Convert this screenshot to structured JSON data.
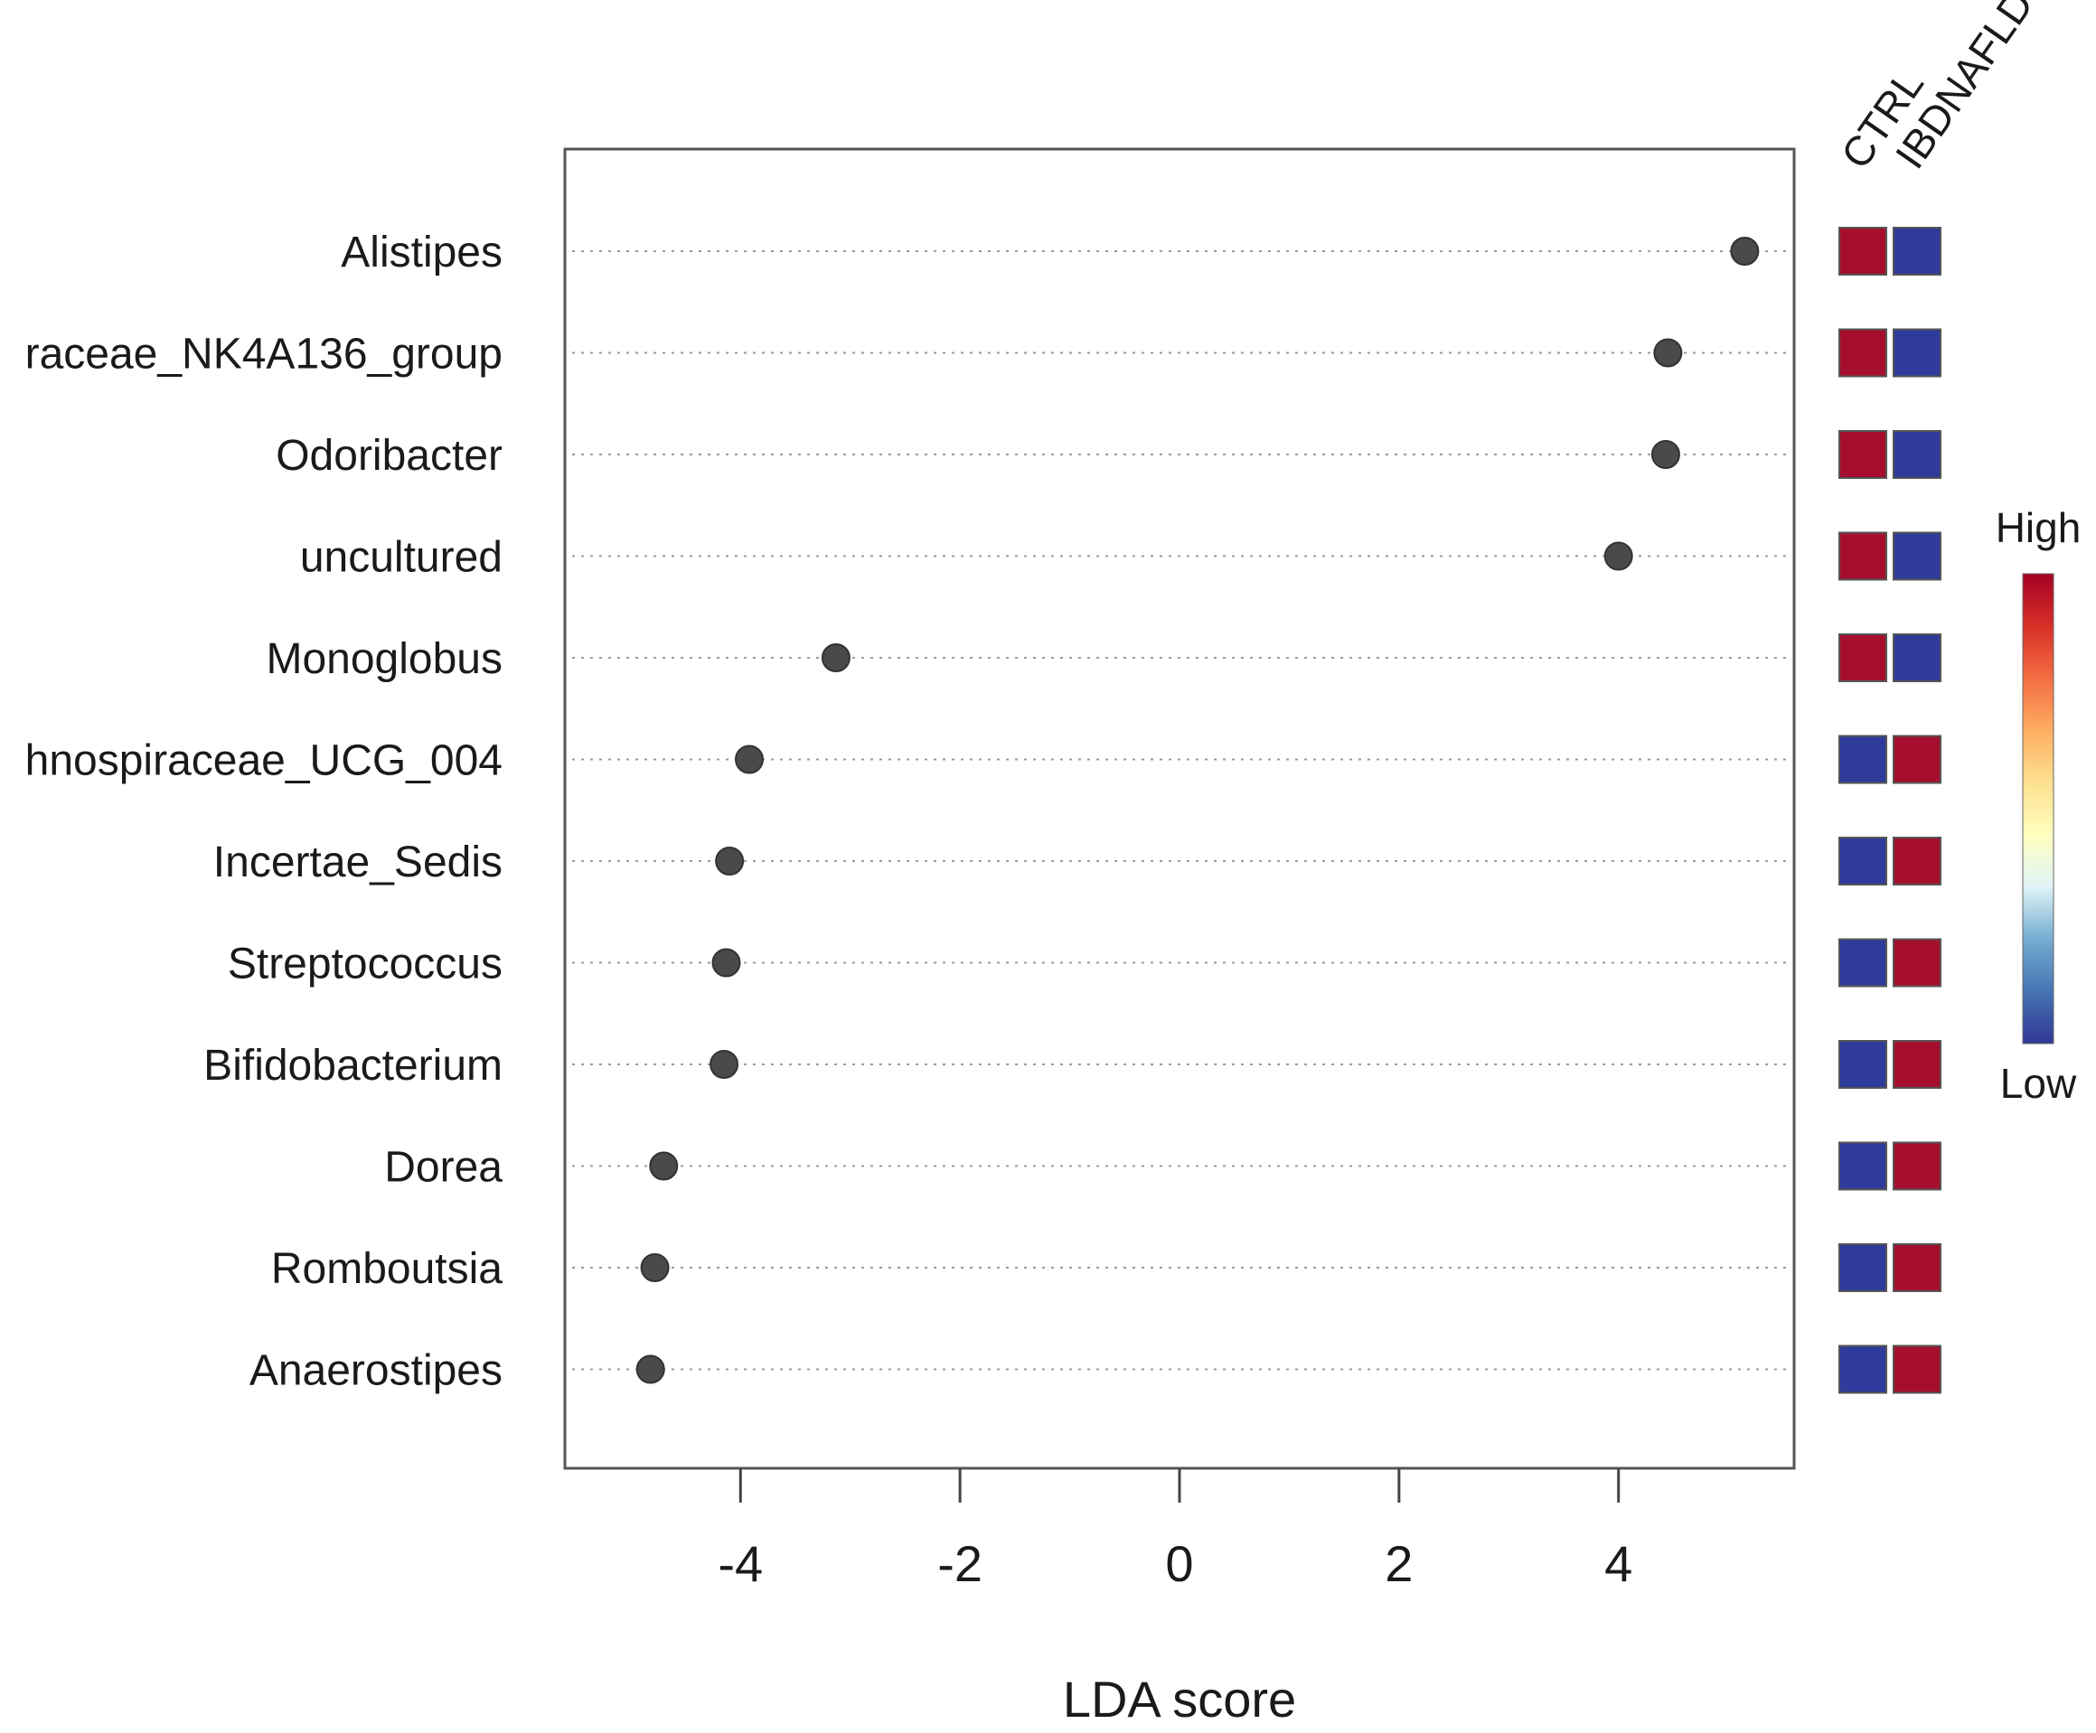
{
  "chart_data": {
    "type": "scatter",
    "xlabel": "LDA score",
    "ylabel": "",
    "xlim": [
      -5.6,
      5.6
    ],
    "x_ticks": [
      -4,
      -2,
      0,
      2,
      4
    ],
    "grid": "horizontal dotted guide lines per row",
    "categories": [
      "Alistipes",
      "raceae_NK4A136_group",
      "Odoribacter",
      "uncultured",
      "Monoglobus",
      "hnospiraceae_UCG_004",
      "Incertae_Sedis",
      "Streptococcus",
      "Bifidobacterium",
      "Dorea",
      "Romboutsia",
      "Anaerostipes"
    ],
    "values": [
      5.15,
      4.45,
      4.43,
      4.0,
      -3.13,
      -3.92,
      -4.1,
      -4.13,
      -4.15,
      -4.7,
      -4.78,
      -4.82
    ],
    "heatmap": {
      "groups": [
        "CTRL",
        "IBDNAFLD"
      ],
      "levels": [
        [
          "high",
          "low"
        ],
        [
          "high",
          "low"
        ],
        [
          "high",
          "low"
        ],
        [
          "high",
          "low"
        ],
        [
          "high",
          "low"
        ],
        [
          "low",
          "high"
        ],
        [
          "low",
          "high"
        ],
        [
          "low",
          "high"
        ],
        [
          "low",
          "high"
        ],
        [
          "low",
          "high"
        ],
        [
          "low",
          "high"
        ],
        [
          "low",
          "high"
        ]
      ]
    },
    "legend": {
      "high_label": "High",
      "low_label": "Low",
      "placement": "right"
    },
    "colors": {
      "point": "#4a4a4a",
      "high": "#a50f2d",
      "low": "#2e3b9a",
      "gradient": [
        "#313695",
        "#4575b4",
        "#74add1",
        "#e0f3f8",
        "#ffffbf",
        "#fee090",
        "#fdae61",
        "#f46d43",
        "#d73027",
        "#a50026"
      ]
    }
  }
}
